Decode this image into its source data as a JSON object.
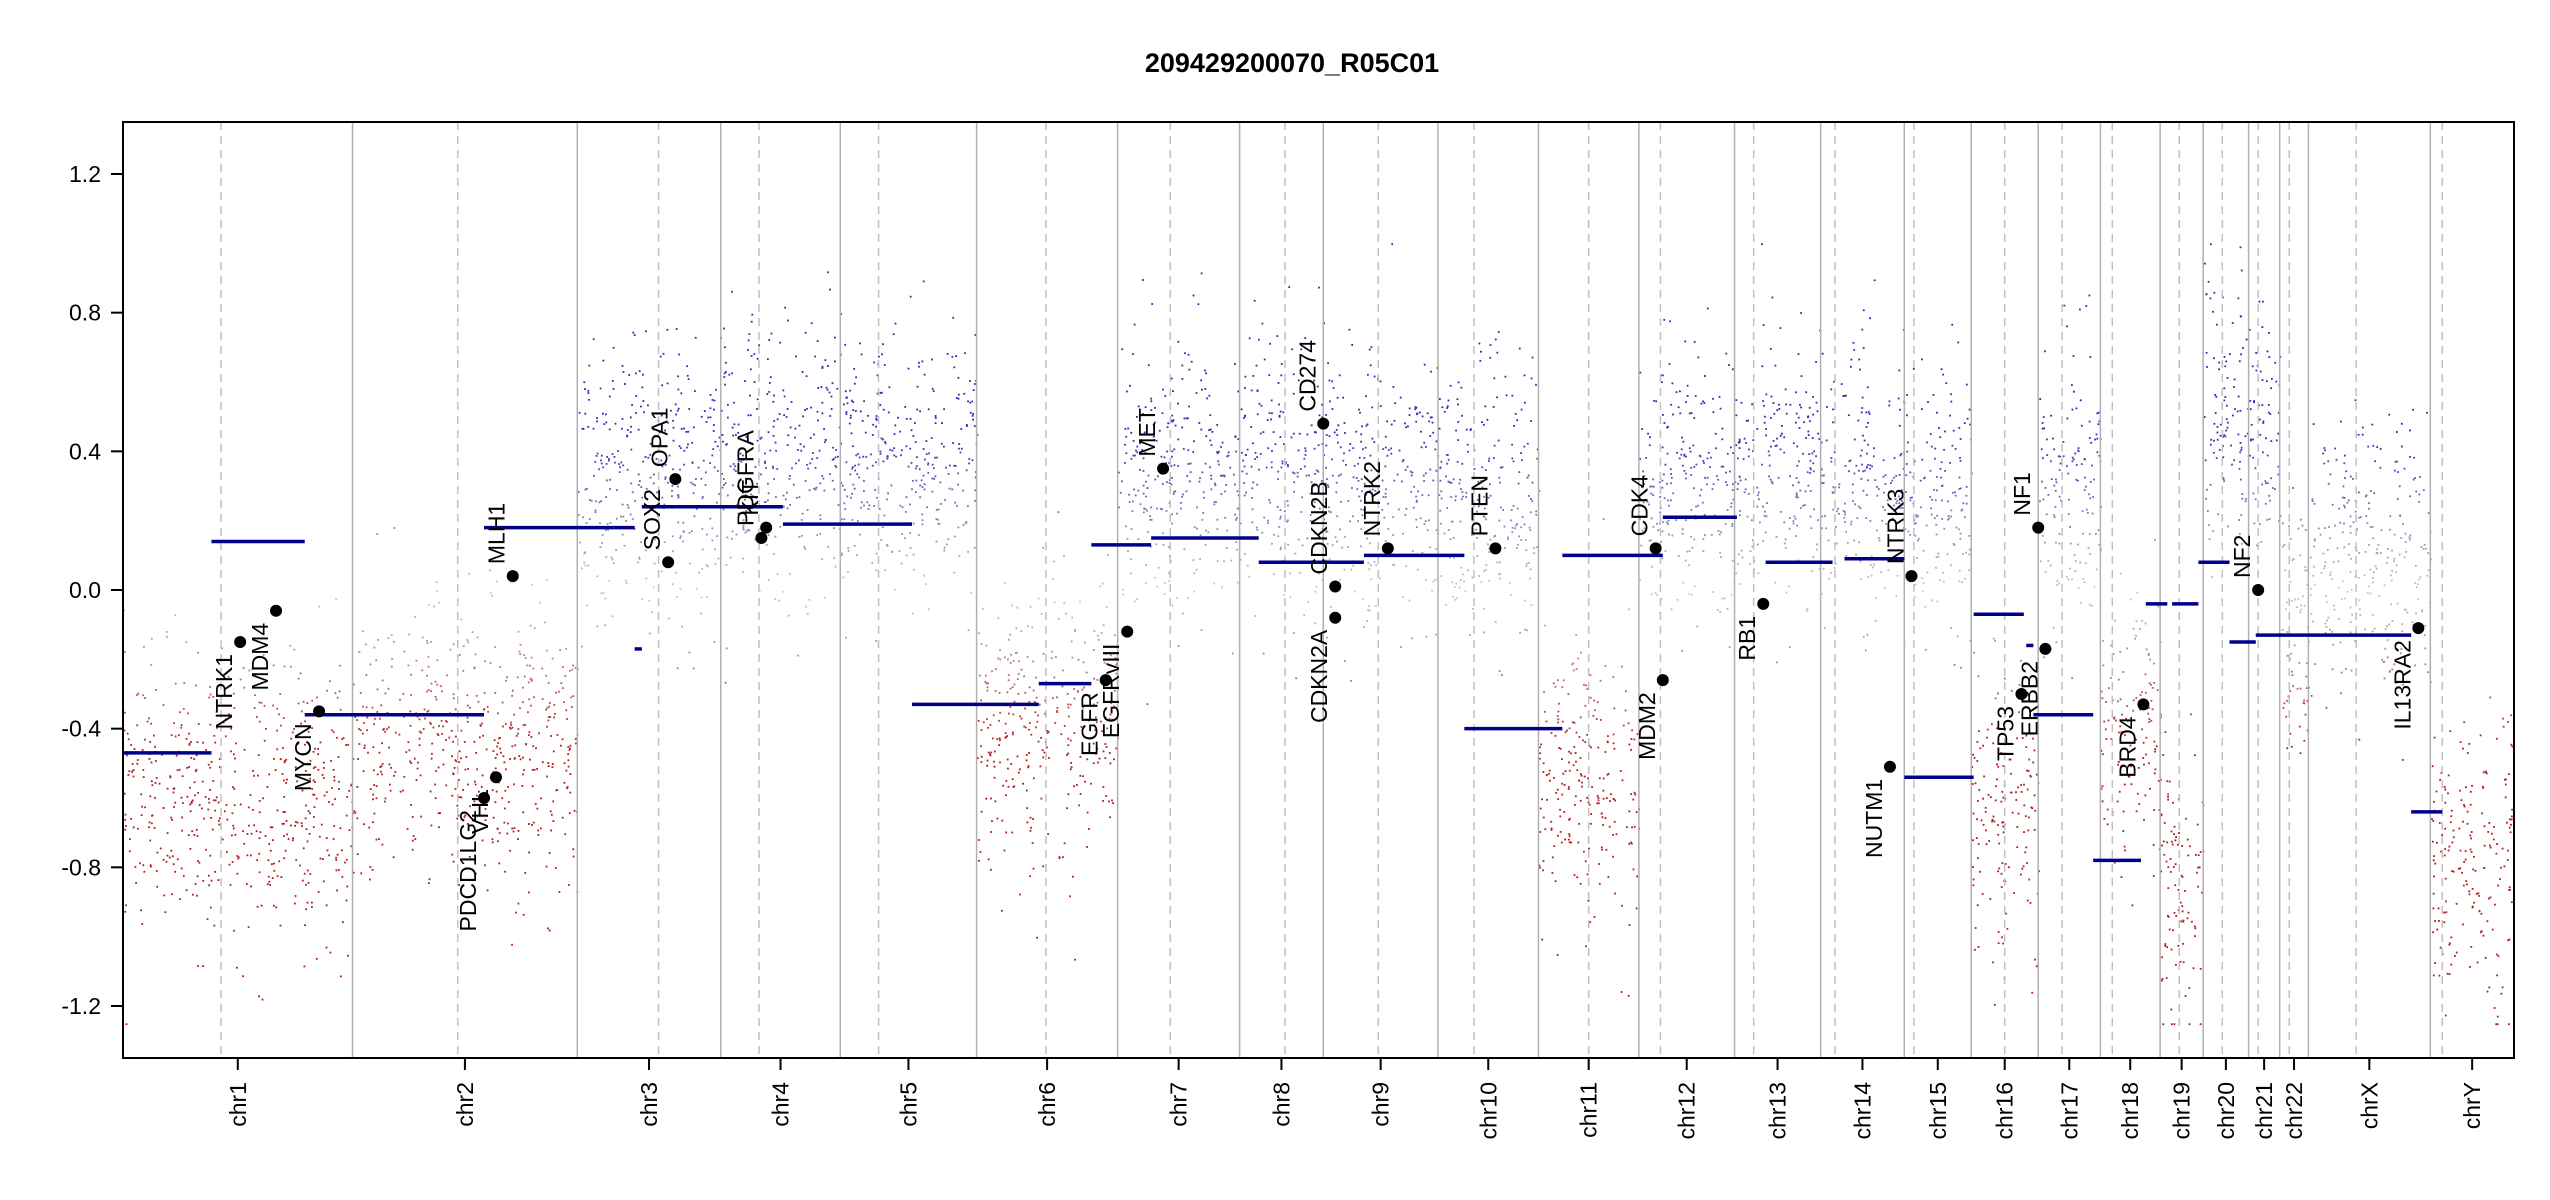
{
  "chart_data": {
    "type": "scatter",
    "title": "209429200070_R05C01",
    "xlabel": "",
    "ylabel": "",
    "ylim": [
      -1.35,
      1.35
    ],
    "y_ticks": [
      -1.2,
      -0.8,
      -0.4,
      0.0,
      0.4,
      0.8,
      1.2
    ],
    "y_tick_labels": [
      "-1.2",
      "-0.8",
      "-0.4",
      "0.0",
      "0.4",
      "0.8",
      "1.2"
    ],
    "colors": {
      "gain": "#2b2bb0",
      "loss": "#b01c1c",
      "neutral": "#c8c8c8",
      "segment": "#00008b",
      "gene_point": "#000000",
      "separator": "#b0b0b0",
      "centromere": "#c0c0c0"
    },
    "chromosomes": [
      {
        "name": "chr1",
        "start": 0.0,
        "end": 9.6,
        "centromere": 4.1,
        "scatter_base": -0.6
      },
      {
        "name": "chr2",
        "start": 9.6,
        "end": 19.0,
        "centromere": 14.0,
        "scatter_base": -0.45
      },
      {
        "name": "chr3",
        "start": 19.0,
        "end": 25.0,
        "centromere": 22.4,
        "scatter_base": 0.3
      },
      {
        "name": "chr4",
        "start": 25.0,
        "end": 30.0,
        "centromere": 26.6,
        "scatter_base": 0.4
      },
      {
        "name": "chr5",
        "start": 30.0,
        "end": 35.7,
        "centromere": 31.6,
        "scatter_base": 0.35
      },
      {
        "name": "chr6",
        "start": 35.7,
        "end": 41.6,
        "centromere": 38.6,
        "scatter_base": -0.4
      },
      {
        "name": "chr7",
        "start": 41.6,
        "end": 46.7,
        "centromere": 43.8,
        "scatter_base": 0.35
      },
      {
        "name": "chr8",
        "start": 46.7,
        "end": 50.2,
        "centromere": 48.6,
        "scatter_base": 0.35
      },
      {
        "name": "chr9",
        "start": 50.2,
        "end": 55.0,
        "centromere": 52.5,
        "scatter_base": 0.3
      },
      {
        "name": "chr10",
        "start": 55.0,
        "end": 59.2,
        "centromere": 56.5,
        "scatter_base": 0.25
      },
      {
        "name": "chr11",
        "start": 59.2,
        "end": 63.4,
        "centromere": 61.3,
        "scatter_base": -0.55
      },
      {
        "name": "chr12",
        "start": 63.4,
        "end": 67.4,
        "centromere": 64.3,
        "scatter_base": 0.3
      },
      {
        "name": "chr13",
        "start": 67.4,
        "end": 71.0,
        "centromere": 68.2,
        "scatter_base": 0.35
      },
      {
        "name": "chr14",
        "start": 71.0,
        "end": 74.5,
        "centromere": 71.6,
        "scatter_base": 0.3
      },
      {
        "name": "chr15",
        "start": 74.5,
        "end": 77.3,
        "centromere": 74.9,
        "scatter_base": 0.25
      },
      {
        "name": "chr16",
        "start": 77.3,
        "end": 80.1,
        "centromere": 78.7,
        "scatter_base": -0.65
      },
      {
        "name": "chr17",
        "start": 80.1,
        "end": 82.7,
        "centromere": 81.1,
        "scatter_base": 0.3
      },
      {
        "name": "chr18",
        "start": 82.7,
        "end": 85.2,
        "centromere": 83.2,
        "scatter_base": -0.4
      },
      {
        "name": "chr19",
        "start": 85.2,
        "end": 87.0,
        "centromere": 86.0,
        "scatter_base": -0.85
      },
      {
        "name": "chr20",
        "start": 87.0,
        "end": 88.9,
        "centromere": 87.8,
        "scatter_base": 0.5
      },
      {
        "name": "chr21",
        "start": 88.9,
        "end": 90.2,
        "centromere": 89.3,
        "scatter_base": 0.45
      },
      {
        "name": "chr22",
        "start": 90.2,
        "end": 91.4,
        "centromere": 90.6,
        "scatter_base": -0.15
      },
      {
        "name": "chrX",
        "start": 91.4,
        "end": 96.5,
        "centromere": 93.4,
        "scatter_base": 0.1
      },
      {
        "name": "chrY",
        "start": 96.5,
        "end": 100.0,
        "centromere": 97.0,
        "scatter_base": -0.8
      }
    ],
    "segments": [
      {
        "x0": 0.0,
        "x1": 3.7,
        "y": -0.47
      },
      {
        "x0": 3.7,
        "x1": 7.6,
        "y": 0.14
      },
      {
        "x0": 7.6,
        "x1": 15.1,
        "y": -0.36
      },
      {
        "x0": 15.1,
        "x1": 20.5,
        "y": 0.18
      },
      {
        "x0": 20.5,
        "x1": 21.4,
        "y": 0.18
      },
      {
        "x0": 21.4,
        "x1": 21.7,
        "y": -0.17
      },
      {
        "x0": 21.7,
        "x1": 27.6,
        "y": 0.24
      },
      {
        "x0": 27.6,
        "x1": 33.0,
        "y": 0.19
      },
      {
        "x0": 33.0,
        "x1": 38.3,
        "y": -0.33
      },
      {
        "x0": 38.3,
        "x1": 40.5,
        "y": -0.27
      },
      {
        "x0": 40.5,
        "x1": 43.0,
        "y": 0.13
      },
      {
        "x0": 43.0,
        "x1": 47.5,
        "y": 0.15
      },
      {
        "x0": 47.5,
        "x1": 51.9,
        "y": 0.08
      },
      {
        "x0": 51.9,
        "x1": 56.1,
        "y": 0.1
      },
      {
        "x0": 56.1,
        "x1": 60.2,
        "y": -0.4
      },
      {
        "x0": 60.2,
        "x1": 64.4,
        "y": 0.1
      },
      {
        "x0": 64.4,
        "x1": 67.5,
        "y": 0.21
      },
      {
        "x0": 68.7,
        "x1": 71.5,
        "y": 0.08
      },
      {
        "x0": 72.0,
        "x1": 74.5,
        "y": 0.09
      },
      {
        "x0": 74.5,
        "x1": 77.4,
        "y": -0.54
      },
      {
        "x0": 77.4,
        "x1": 79.5,
        "y": -0.07
      },
      {
        "x0": 79.6,
        "x1": 79.9,
        "y": -0.16
      },
      {
        "x0": 79.9,
        "x1": 82.4,
        "y": -0.36
      },
      {
        "x0": 82.4,
        "x1": 84.4,
        "y": -0.78
      },
      {
        "x0": 84.6,
        "x1": 85.5,
        "y": -0.04
      },
      {
        "x0": 85.7,
        "x1": 86.8,
        "y": -0.04
      },
      {
        "x0": 86.8,
        "x1": 88.1,
        "y": 0.08
      },
      {
        "x0": 88.1,
        "x1": 89.2,
        "y": -0.15
      },
      {
        "x0": 89.2,
        "x1": 95.7,
        "y": -0.13
      },
      {
        "x0": 95.7,
        "x1": 97.0,
        "y": -0.64
      }
    ],
    "genes": [
      {
        "name": "NTRK1",
        "x": 4.9,
        "y": -0.15,
        "side": "below"
      },
      {
        "name": "MDM4",
        "x": 6.4,
        "y": -0.06,
        "side": "below"
      },
      {
        "name": "MYCN",
        "x": 8.2,
        "y": -0.35,
        "side": "below"
      },
      {
        "name": "PDGFRA",
        "x": 26.7,
        "y": 0.15,
        "side": "above"
      },
      {
        "name": "KIT",
        "x": 26.9,
        "y": 0.18,
        "side": "above"
      },
      {
        "name": "SOX2",
        "x": 22.8,
        "y": 0.08,
        "side": "above"
      },
      {
        "name": "OPA1",
        "x": 23.1,
        "y": 0.32,
        "side": "above"
      },
      {
        "name": "MLH1",
        "x": 16.3,
        "y": 0.04,
        "side": "above"
      },
      {
        "name": "PDCD1LG2",
        "x": 15.1,
        "y": -0.6,
        "side": "below"
      },
      {
        "name": "VHL",
        "x": 15.6,
        "y": -0.54,
        "side": "below"
      },
      {
        "name": "EGFR",
        "x": 41.1,
        "y": -0.26,
        "side": "below"
      },
      {
        "name": "EGFRvIII",
        "x": 42.0,
        "y": -0.12,
        "side": "below"
      },
      {
        "name": "MET",
        "x": 43.5,
        "y": 0.35,
        "side": "above"
      },
      {
        "name": "CD274",
        "x": 50.2,
        "y": 0.48,
        "side": "above"
      },
      {
        "name": "CDKN2B",
        "x": 50.7,
        "y": 0.01,
        "side": "above"
      },
      {
        "name": "CDKN2A",
        "x": 50.7,
        "y": -0.08,
        "side": "below"
      },
      {
        "name": "NTRK2",
        "x": 52.9,
        "y": 0.12,
        "side": "above"
      },
      {
        "name": "PTEN",
        "x": 57.4,
        "y": 0.12,
        "side": "above"
      },
      {
        "name": "CDK4",
        "x": 64.1,
        "y": 0.12,
        "side": "above"
      },
      {
        "name": "MDM2",
        "x": 64.4,
        "y": -0.26,
        "side": "below"
      },
      {
        "name": "RB1",
        "x": 68.6,
        "y": -0.04,
        "side": "below"
      },
      {
        "name": "NTRK3",
        "x": 74.8,
        "y": 0.04,
        "side": "above"
      },
      {
        "name": "NUTM1",
        "x": 73.9,
        "y": -0.51,
        "side": "below"
      },
      {
        "name": "TP53",
        "x": 79.4,
        "y": -0.3,
        "side": "below"
      },
      {
        "name": "NF1",
        "x": 80.1,
        "y": 0.18,
        "side": "above"
      },
      {
        "name": "ERBB2",
        "x": 80.4,
        "y": -0.17,
        "side": "below"
      },
      {
        "name": "BRD4",
        "x": 84.5,
        "y": -0.33,
        "side": "below"
      },
      {
        "name": "NF2",
        "x": 89.3,
        "y": 0.0,
        "side": "above"
      },
      {
        "name": "IL13RA2",
        "x": 96.0,
        "y": -0.11,
        "side": "below"
      }
    ]
  }
}
